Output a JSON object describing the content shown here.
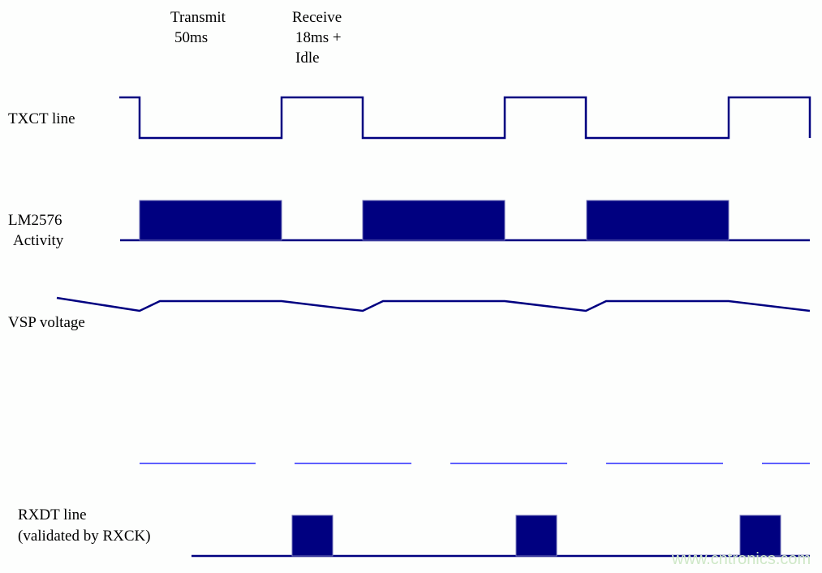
{
  "header": {
    "transmit_label": "Transmit",
    "transmit_duration": "50ms",
    "receive_label": "Receive",
    "receive_duration": "18ms +",
    "idle_label": "Idle"
  },
  "signals": {
    "txct": "TXCT line",
    "lm2576_line1": "LM2576",
    "lm2576_line2": "Activity",
    "vsp": "VSP voltage",
    "rxdt_line1": "RXDT line",
    "rxdt_line2": "(validated by RXCK)"
  },
  "watermark": "www.cntronics.com",
  "colors": {
    "signal": "#000080",
    "marker": "#0000ff",
    "watermark": "#cfe8c8"
  }
}
